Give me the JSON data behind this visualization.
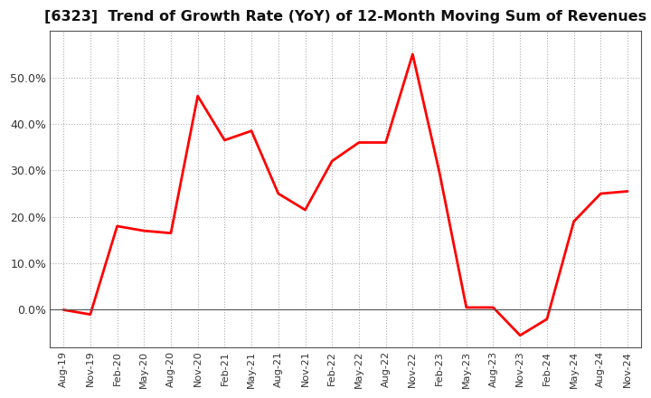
{
  "title": "[6323]  Trend of Growth Rate (YoY) of 12-Month Moving Sum of Revenues",
  "title_fontsize": 11.5,
  "line_color": "#FF0000",
  "line_width": 2.0,
  "background_color": "#FFFFFF",
  "plot_bg_color": "#FFFFFF",
  "grid_color": "#999999",
  "x_labels": [
    "Aug-19",
    "Nov-19",
    "Feb-20",
    "May-20",
    "Aug-20",
    "Nov-20",
    "Feb-21",
    "May-21",
    "Aug-21",
    "Nov-21",
    "Feb-22",
    "May-22",
    "Aug-22",
    "Nov-22",
    "Feb-23",
    "May-23",
    "Aug-23",
    "Nov-23",
    "Feb-24",
    "May-24",
    "Aug-24",
    "Nov-24"
  ],
  "data": {
    "Aug-19": 0.0,
    "Nov-19": -1.0,
    "Feb-20": 18.0,
    "May-20": 17.0,
    "Aug-20": 16.5,
    "Nov-20": 46.0,
    "Feb-21": 36.5,
    "May-21": 38.5,
    "Aug-21": 25.0,
    "Nov-21": 21.5,
    "Feb-22": 32.0,
    "May-22": 36.0,
    "Aug-22": 36.0,
    "Nov-22": 55.0,
    "Feb-23": 29.5,
    "May-23": 0.5,
    "Aug-23": 0.5,
    "Nov-23": -5.5,
    "Feb-24": -2.0,
    "May-24": 19.0,
    "Aug-24": 25.0,
    "Nov-24": 25.5
  },
  "ylim_min": -8,
  "ylim_max": 60,
  "yticks": [
    0,
    10,
    20,
    30,
    40,
    50
  ],
  "spine_color": "#555555",
  "zero_line_color": "#555555"
}
